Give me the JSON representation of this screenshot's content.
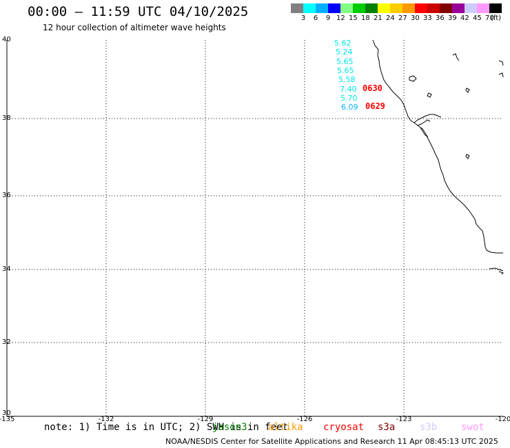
{
  "header": {
    "title": "00:00 – 11:59 UTC 04/10/2025",
    "subtitle": "12 hour collection of altimeter wave heights"
  },
  "color_scale": {
    "unit": "(ft)",
    "bins": [
      {
        "label": "3",
        "color": "#808080"
      },
      {
        "label": "6",
        "color": "#00ffff"
      },
      {
        "label": "9",
        "color": "#00b0ff"
      },
      {
        "label": "12",
        "color": "#0000ff"
      },
      {
        "label": "15",
        "color": "#80ff80"
      },
      {
        "label": "18",
        "color": "#00cc00"
      },
      {
        "label": "21",
        "color": "#008000"
      },
      {
        "label": "24",
        "color": "#ffff00"
      },
      {
        "label": "27",
        "color": "#ffcc00"
      },
      {
        "label": "30",
        "color": "#ff9900"
      },
      {
        "label": "33",
        "color": "#ff0000"
      },
      {
        "label": "36",
        "color": "#cc0000"
      },
      {
        "label": "39",
        "color": "#800000"
      },
      {
        "label": "42",
        "color": "#990099"
      },
      {
        "label": "45",
        "color": "#ccccff"
      },
      {
        "label": "70",
        "color": "#ff99ff"
      },
      {
        "label": "",
        "color": "#000000"
      }
    ]
  },
  "axes": {
    "lon_labels": [
      "-135",
      "-132",
      "-129",
      "-126",
      "-123",
      "-120"
    ],
    "lat_labels": [
      "40",
      "38",
      "36",
      "34",
      "32",
      "30"
    ]
  },
  "wave_readings": [
    {
      "value": "5.62",
      "color": "#00e5e5"
    },
    {
      "value": "5.24",
      "color": "#00e5e5"
    },
    {
      "value": "5.65",
      "color": "#00e5e5"
    },
    {
      "value": "5.65",
      "color": "#00e5e5"
    },
    {
      "value": "5.58",
      "color": "#00e5e5"
    },
    {
      "value": "7.40",
      "color": "#00e5e5"
    },
    {
      "value": "5.70",
      "color": "#00e5e5"
    },
    {
      "value": "6.09",
      "color": "#00b0ff"
    }
  ],
  "time_labels": [
    {
      "text": "0630",
      "color": "#ff0000"
    },
    {
      "text": "0629",
      "color": "#ff0000"
    }
  ],
  "note": {
    "text": "note: 1) Time is in UTC; 2) SWH is in feet",
    "satellites": [
      {
        "name": "jason3",
        "color": "#008000"
      },
      {
        "name": "altika",
        "color": "#ff9900"
      },
      {
        "name": "cryosat",
        "color": "#ff0000"
      },
      {
        "name": "s3a",
        "color": "#800000"
      },
      {
        "name": "s3b",
        "color": "#ccccff"
      },
      {
        "name": "swot",
        "color": "#ff99ff"
      }
    ]
  },
  "footer": {
    "text": "NOAA/NESDIS Center for Satellite Applications and Research   11 Apr 08:45:13 UTC 2025"
  }
}
